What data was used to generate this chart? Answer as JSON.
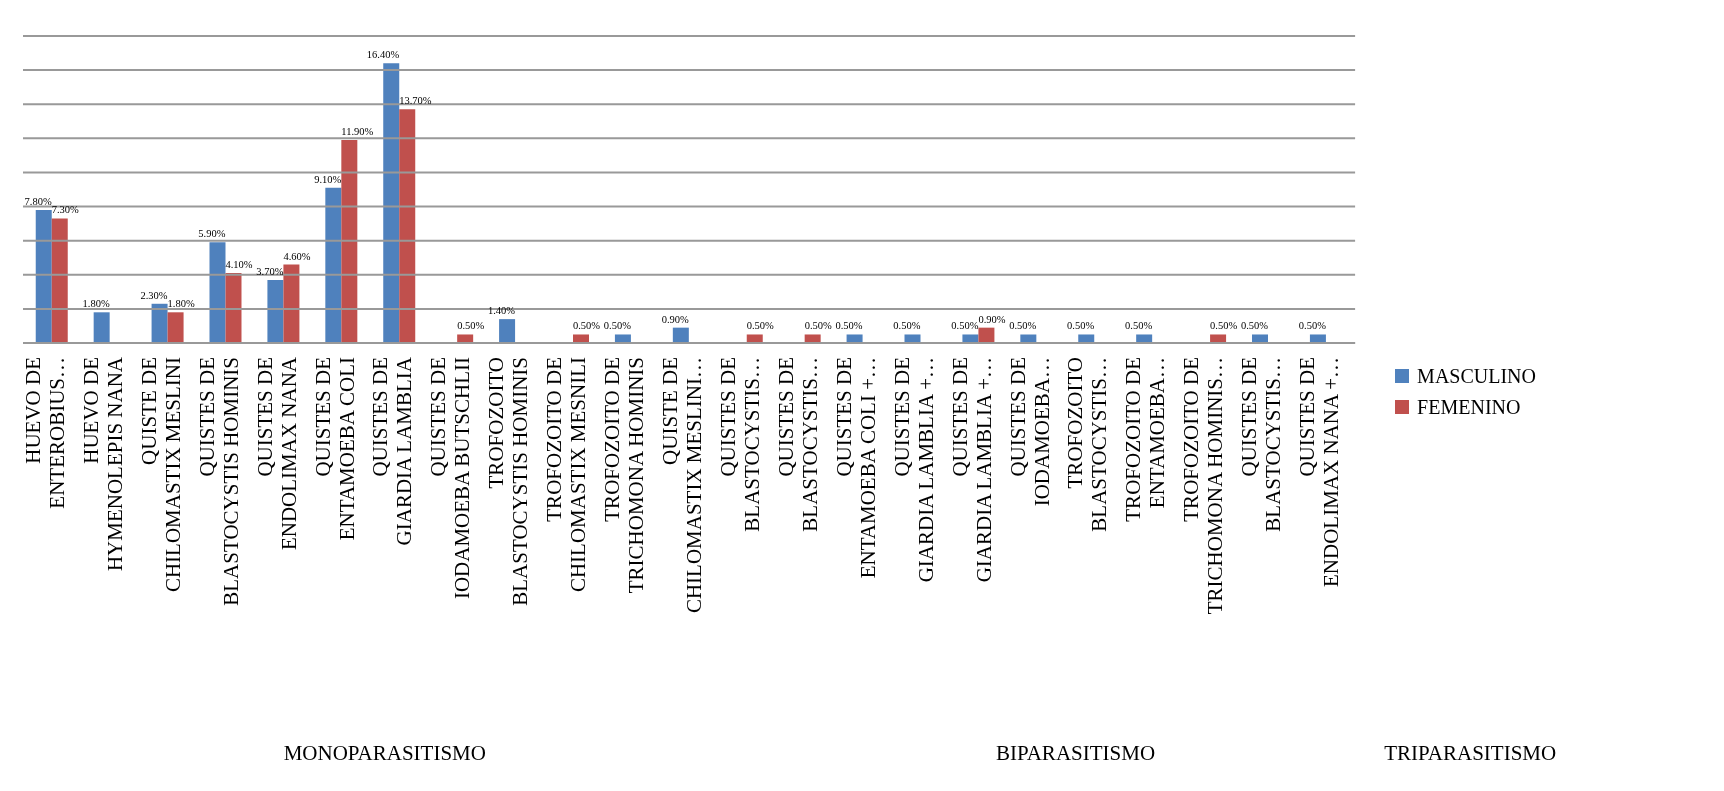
{
  "chart_data": {
    "type": "bar",
    "categories": [
      "HUEVO DE ENTEROBIUS…",
      "HUEVO DE HYMENOLEPIS NANA",
      "QUISTE DE CHILOMASTIX MESLINI",
      "QUISTES DE BLASTOCYSTIS HOMINIS",
      "QUISTES DE ENDOLIMAX NANA",
      "QUISTES DE ENTAMOEBA COLI",
      "QUISTES DE GIARDIA LAMBLIA",
      "QUISTES DE IODAMOEBA BUTSCHLII",
      "TROFOZOITO BLASTOCYSTIS HOMINIS",
      "TROFOZOITO DE CHILOMASTIX MESNILI",
      "TROFOZOITO DE TRICHOMONA HOMINIS",
      "QUISTE DE CHILOMASTIX MESLINI…",
      "QUISTES DE BLASTOCYSTIS…",
      "QUISTES DE BLASTOCYSTIS…",
      "QUISTES DE ENTAMOEBA COLI +…",
      "QUISTES DE GIARDIA LAMBLIA +…",
      "QUISTES DE GIARDIA LAMBLIA +…",
      "QUISTES DE IODAMOEBA…",
      "TROFOZOITO BLASTOCYSTIS…",
      "TROFOZOITO DE ENTAMOEBA…",
      "TROFOZOITO DE TRICHOMONA HOMINIS…",
      "QUISTES DE BLASTOCYSTIS…",
      "QUISTES DE ENDOLIMAX NANA +…"
    ],
    "series": [
      {
        "name": "MASCULINO",
        "color": "#4f81bd",
        "values": [
          7.8,
          1.8,
          2.3,
          5.9,
          3.7,
          9.1,
          16.4,
          null,
          1.4,
          null,
          0.5,
          0.9,
          null,
          null,
          0.5,
          0.5,
          0.5,
          0.5,
          0.5,
          0.5,
          null,
          0.5,
          0.5
        ],
        "value_labels": [
          "7.80%",
          "1.80%",
          "2.30%",
          "5.90%",
          "3.70%",
          "9.10%",
          "16.40%",
          null,
          "1.40%",
          null,
          "0.50%",
          "0.90%",
          null,
          null,
          "0.50%",
          "0.50%",
          "0.50%",
          "0.50%",
          "0.50%",
          "0.50%",
          null,
          "0.50%",
          "0.50%"
        ]
      },
      {
        "name": "FEMENINO",
        "color": "#c0504d",
        "values": [
          7.3,
          null,
          1.8,
          4.1,
          4.6,
          11.9,
          13.7,
          0.5,
          null,
          0.5,
          null,
          null,
          0.5,
          0.5,
          null,
          null,
          0.9,
          null,
          null,
          null,
          0.5,
          null,
          null
        ],
        "value_labels": [
          "7.30%",
          null,
          "1.80%",
          "4.10%",
          "4.60%",
          "11.90%",
          "13.70%",
          "0.50%",
          null,
          "0.50%",
          null,
          null,
          "0.50%",
          "0.50%",
          null,
          null,
          "0.90%",
          null,
          null,
          null,
          "0.50%",
          null,
          null
        ]
      }
    ],
    "ylim": [
      0,
      18
    ],
    "yticks": [
      {
        "value": 0,
        "label": null
      },
      {
        "value": 2,
        "label": null
      },
      {
        "value": 4,
        "label": null
      },
      {
        "value": 6,
        "label": null
      },
      {
        "value": 8,
        "label": null
      },
      {
        "value": 10,
        "label": null
      },
      {
        "value": 12,
        "label": null
      },
      {
        "value": 14,
        "label": null
      },
      {
        "value": 16,
        "label": null
      },
      {
        "value": 18,
        "label": null
      }
    ],
    "tick_labels": "x",
    "grid": "y",
    "legend": "right",
    "annotations": [
      "MONOPARASITISMO",
      "BIPARASITISMO",
      "TRIPARASITISMO"
    ]
  }
}
